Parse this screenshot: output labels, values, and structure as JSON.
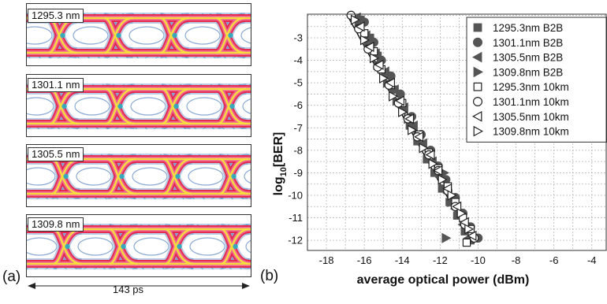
{
  "panel_a": {
    "label": "(a)",
    "eyes": [
      {
        "wavelength_label": "1295.3 nm"
      },
      {
        "wavelength_label": "1301.1 nm"
      },
      {
        "wavelength_label": "1305.5 nm"
      },
      {
        "wavelength_label": "1309.8 nm"
      }
    ],
    "time_scale_label": "143 ps"
  },
  "panel_b": {
    "label": "(b)"
  },
  "colors": {
    "eye_red": "#e8244a",
    "eye_pink": "#f06a9a",
    "eye_yellow": "#f5e23a",
    "eye_blue": "#3a6fb8",
    "eye_cyan": "#27b3c2",
    "marker": "#555555"
  },
  "chart_data": {
    "type": "scatter",
    "xlabel": "average optical power (dBm)",
    "ylabel": "log10[BER]",
    "xlim": [
      -19,
      -3.2
    ],
    "ylim": [
      -12.45,
      -1.95
    ],
    "xticks": [
      -18,
      -16,
      -14,
      -12,
      -10,
      -8,
      -6,
      -4
    ],
    "yticks": [
      -3,
      -4,
      -5,
      -6,
      -7,
      -8,
      -9,
      -10,
      -11,
      -12
    ],
    "grid": true,
    "legend_position": "top-right",
    "fit_lines": [
      {
        "x": [
          -16.9,
          -10.3
        ],
        "y": [
          -2.0,
          -12.1
        ]
      },
      {
        "x": [
          -16.6,
          -10.0
        ],
        "y": [
          -2.0,
          -12.0
        ]
      }
    ],
    "series": [
      {
        "name": "1295.3nm B2B",
        "marker": "square",
        "filled": true,
        "points": [
          [
            -16.2,
            -2.2
          ],
          [
            -15.7,
            -3.0
          ],
          [
            -15.3,
            -3.8
          ],
          [
            -14.9,
            -4.6
          ],
          [
            -14.5,
            -5.3
          ],
          [
            -14.0,
            -6.2
          ],
          [
            -13.6,
            -6.9
          ],
          [
            -13.2,
            -7.6
          ],
          [
            -12.7,
            -8.4
          ],
          [
            -12.3,
            -9.0
          ],
          [
            -11.9,
            -9.7
          ],
          [
            -11.5,
            -10.3
          ],
          [
            -11.1,
            -10.9
          ],
          [
            -10.7,
            -11.6
          ],
          [
            -10.4,
            -12.0
          ]
        ]
      },
      {
        "name": "1301.1nm B2B",
        "marker": "circle",
        "filled": true,
        "points": [
          [
            -16.0,
            -2.3
          ],
          [
            -15.5,
            -3.2
          ],
          [
            -15.1,
            -4.0
          ],
          [
            -14.6,
            -4.7
          ],
          [
            -14.1,
            -5.5
          ],
          [
            -13.5,
            -6.5
          ],
          [
            -13.0,
            -7.3
          ],
          [
            -12.5,
            -8.0
          ],
          [
            -12.1,
            -8.7
          ],
          [
            -11.7,
            -9.3
          ],
          [
            -11.2,
            -10.1
          ],
          [
            -10.8,
            -10.8
          ],
          [
            -10.4,
            -11.4
          ],
          [
            -10.0,
            -11.9
          ]
        ]
      },
      {
        "name": "1305.5nm B2B",
        "marker": "triangle-left",
        "filled": true,
        "points": [
          [
            -16.4,
            -2.1
          ],
          [
            -15.9,
            -2.9
          ],
          [
            -15.4,
            -3.7
          ],
          [
            -14.9,
            -4.5
          ],
          [
            -14.4,
            -5.3
          ],
          [
            -13.9,
            -6.1
          ],
          [
            -13.4,
            -6.9
          ],
          [
            -12.9,
            -7.7
          ],
          [
            -12.4,
            -8.5
          ],
          [
            -12.0,
            -9.2
          ],
          [
            -11.6,
            -9.9
          ],
          [
            -11.2,
            -10.6
          ],
          [
            -10.8,
            -11.3
          ],
          [
            -10.5,
            -11.9
          ]
        ]
      },
      {
        "name": "1309.8nm B2B",
        "marker": "triangle-right",
        "filled": true,
        "points": [
          [
            -16.3,
            -2.4
          ],
          [
            -15.8,
            -3.3
          ],
          [
            -15.3,
            -4.2
          ],
          [
            -14.8,
            -5.0
          ],
          [
            -14.3,
            -5.8
          ],
          [
            -13.7,
            -6.6
          ],
          [
            -13.2,
            -7.3
          ],
          [
            -12.6,
            -8.1
          ],
          [
            -11.8,
            -9.0
          ],
          [
            -11.4,
            -10.3
          ],
          [
            -11.7,
            -11.9
          ]
        ]
      },
      {
        "name": "1295.3nm 10km",
        "marker": "square",
        "filled": false,
        "points": [
          [
            -16.0,
            -2.8
          ],
          [
            -15.5,
            -3.6
          ],
          [
            -15.1,
            -4.4
          ],
          [
            -14.6,
            -5.1
          ],
          [
            -14.0,
            -5.9
          ],
          [
            -13.6,
            -6.6
          ],
          [
            -13.1,
            -7.3
          ],
          [
            -12.6,
            -8.1
          ],
          [
            -12.1,
            -8.8
          ],
          [
            -11.6,
            -9.6
          ],
          [
            -11.2,
            -10.3
          ],
          [
            -10.8,
            -11.0
          ],
          [
            -10.4,
            -11.5
          ],
          [
            -10.6,
            -12.1
          ]
        ]
      },
      {
        "name": "1301.1nm 10km",
        "marker": "circle",
        "filled": false,
        "points": [
          [
            -16.7,
            -2.0
          ],
          [
            -16.3,
            -2.6
          ],
          [
            -15.8,
            -3.5
          ],
          [
            -15.3,
            -4.3
          ],
          [
            -14.7,
            -5.1
          ],
          [
            -14.2,
            -5.9
          ],
          [
            -13.7,
            -6.6
          ],
          [
            -13.2,
            -7.4
          ],
          [
            -12.6,
            -8.2
          ],
          [
            -12.1,
            -8.9
          ],
          [
            -11.6,
            -9.8
          ],
          [
            -11.2,
            -10.5
          ],
          [
            -10.7,
            -11.3
          ],
          [
            -10.2,
            -11.9
          ]
        ]
      },
      {
        "name": "1305.5nm 10km",
        "marker": "triangle-left",
        "filled": false,
        "points": [
          [
            -16.2,
            -2.5
          ],
          [
            -15.7,
            -3.4
          ],
          [
            -15.2,
            -4.2
          ],
          [
            -14.6,
            -5.0
          ],
          [
            -14.1,
            -5.8
          ],
          [
            -13.6,
            -6.6
          ],
          [
            -13.1,
            -7.4
          ],
          [
            -12.5,
            -8.2
          ],
          [
            -12.1,
            -8.9
          ],
          [
            -11.6,
            -9.7
          ],
          [
            -11.1,
            -10.5
          ],
          [
            -10.7,
            -11.2
          ],
          [
            -10.3,
            -11.8
          ]
        ]
      },
      {
        "name": "1309.8nm 10km",
        "marker": "triangle-right",
        "filled": false,
        "points": [
          [
            -16.5,
            -2.2
          ],
          [
            -16.0,
            -3.1
          ],
          [
            -15.5,
            -3.9
          ],
          [
            -15.0,
            -4.8
          ],
          [
            -14.5,
            -5.6
          ],
          [
            -14.0,
            -6.3
          ],
          [
            -13.5,
            -7.1
          ],
          [
            -12.9,
            -7.9
          ],
          [
            -12.4,
            -8.6
          ],
          [
            -11.9,
            -9.3
          ],
          [
            -11.4,
            -10.0
          ],
          [
            -10.9,
            -10.8
          ],
          [
            -10.5,
            -11.5
          ]
        ]
      }
    ]
  }
}
